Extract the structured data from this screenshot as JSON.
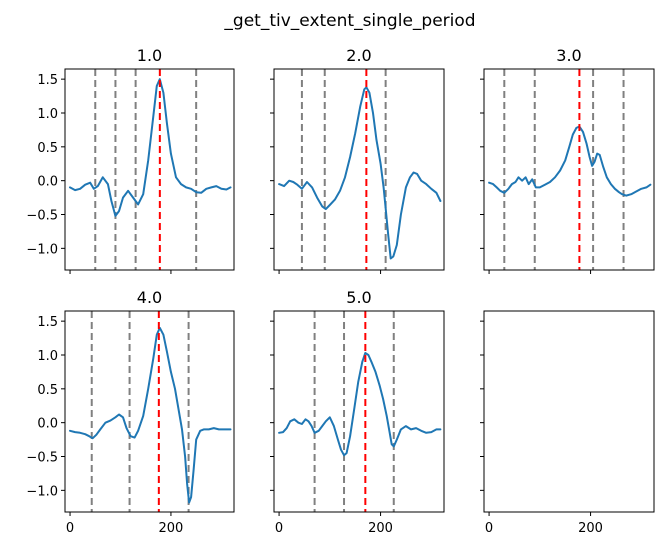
{
  "figure": {
    "suptitle": "_get_tiv_extent_single_period"
  },
  "colors": {
    "signal": "#1f77b4",
    "bound_line": "#808080",
    "peak_line": "#ff0000",
    "axes": "#000000",
    "background": "#ffffff"
  },
  "chart_data": [
    {
      "type": "line",
      "title": "1.0",
      "xlim": [
        -10,
        325
      ],
      "ylim": [
        -1.32,
        1.65
      ],
      "x_ticks": [
        0,
        200
      ],
      "y_ticks": [
        -1.0,
        -0.5,
        0.0,
        0.5,
        1.0,
        1.5
      ],
      "x_ticklabels": [],
      "y_ticklabels": [
        "−1.0",
        "−0.5",
        "0.0",
        "0.5",
        "1.0",
        "1.5"
      ],
      "series": [
        {
          "x": [
            0,
            10,
            20,
            30,
            40,
            47,
            55,
            65,
            75,
            82,
            90,
            97,
            105,
            115,
            125,
            135,
            145,
            155,
            165,
            172,
            178,
            185,
            192,
            200,
            210,
            220,
            230,
            240,
            250,
            260,
            270,
            280,
            290,
            300,
            310,
            318
          ],
          "y": [
            -0.1,
            -0.14,
            -0.12,
            -0.06,
            -0.03,
            -0.12,
            -0.08,
            0.05,
            -0.05,
            -0.3,
            -0.52,
            -0.45,
            -0.25,
            -0.15,
            -0.25,
            -0.35,
            -0.2,
            0.3,
            0.95,
            1.4,
            1.5,
            1.3,
            0.85,
            0.4,
            0.05,
            -0.05,
            -0.1,
            -0.12,
            -0.17,
            -0.18,
            -0.12,
            -0.1,
            -0.08,
            -0.12,
            -0.13,
            -0.1
          ]
        }
      ],
      "vlines_bounds": [
        50,
        90,
        130,
        250
      ],
      "vline_peak": 178
    },
    {
      "type": "line",
      "title": "2.0",
      "xlim": [
        -10,
        325
      ],
      "ylim": [
        -1.32,
        1.65
      ],
      "x_ticks": [
        0,
        200
      ],
      "y_ticks": [
        -1.0,
        -0.5,
        0.0,
        0.5,
        1.0,
        1.5
      ],
      "x_ticklabels": [],
      "y_ticklabels": [],
      "series": [
        {
          "x": [
            0,
            10,
            20,
            28,
            36,
            45,
            55,
            65,
            75,
            85,
            92,
            100,
            110,
            120,
            130,
            140,
            150,
            160,
            168,
            172,
            178,
            185,
            192,
            200,
            206,
            210,
            215,
            220,
            225,
            232,
            240,
            250,
            258,
            265,
            272,
            280,
            290,
            300,
            310,
            318
          ],
          "y": [
            -0.05,
            -0.08,
            0.0,
            -0.02,
            -0.06,
            -0.12,
            -0.02,
            -0.1,
            -0.25,
            -0.38,
            -0.42,
            -0.36,
            -0.28,
            -0.15,
            0.05,
            0.35,
            0.7,
            1.1,
            1.35,
            1.38,
            1.3,
            1.0,
            0.6,
            0.25,
            -0.1,
            -0.4,
            -0.8,
            -1.15,
            -1.12,
            -0.95,
            -0.5,
            -0.1,
            0.05,
            0.12,
            0.1,
            0.0,
            -0.05,
            -0.12,
            -0.18,
            -0.3
          ]
        }
      ],
      "vlines_bounds": [
        45,
        90,
        210
      ],
      "vline_peak": 172
    },
    {
      "type": "line",
      "title": "3.0",
      "xlim": [
        -10,
        325
      ],
      "ylim": [
        -1.32,
        1.65
      ],
      "x_ticks": [
        0,
        200
      ],
      "y_ticks": [
        -1.0,
        -0.5,
        0.0,
        0.5,
        1.0,
        1.5
      ],
      "x_ticklabels": [],
      "y_ticklabels": [],
      "series": [
        {
          "x": [
            0,
            8,
            15,
            22,
            30,
            38,
            45,
            52,
            58,
            65,
            72,
            78,
            85,
            92,
            100,
            110,
            120,
            130,
            140,
            150,
            158,
            165,
            172,
            178,
            185,
            192,
            198,
            203,
            208,
            213,
            218,
            225,
            232,
            240,
            248,
            256,
            262,
            270,
            280,
            290,
            300,
            310,
            318
          ],
          "y": [
            -0.03,
            -0.05,
            -0.1,
            -0.15,
            -0.18,
            -0.12,
            -0.05,
            -0.02,
            0.05,
            0.0,
            0.05,
            -0.05,
            0.02,
            -0.1,
            -0.1,
            -0.06,
            -0.02,
            0.05,
            0.15,
            0.3,
            0.5,
            0.68,
            0.78,
            0.8,
            0.72,
            0.55,
            0.35,
            0.22,
            0.28,
            0.4,
            0.38,
            0.2,
            0.05,
            -0.05,
            -0.12,
            -0.17,
            -0.2,
            -0.22,
            -0.2,
            -0.16,
            -0.12,
            -0.1,
            -0.06
          ]
        }
      ],
      "vlines_bounds": [
        30,
        90,
        205,
        265
      ],
      "vline_peak": 178
    },
    {
      "type": "line",
      "title": "4.0",
      "xlim": [
        -10,
        325
      ],
      "ylim": [
        -1.32,
        1.65
      ],
      "x_ticks": [
        0,
        200
      ],
      "y_ticks": [
        -1.0,
        -0.5,
        0.0,
        0.5,
        1.0,
        1.5
      ],
      "x_ticklabels": [
        "0",
        "200"
      ],
      "y_ticklabels": [
        "−1.0",
        "−0.5",
        "0.0",
        "0.5",
        "1.0",
        "1.5"
      ],
      "series": [
        {
          "x": [
            0,
            10,
            20,
            30,
            38,
            45,
            52,
            60,
            70,
            80,
            90,
            97,
            105,
            112,
            120,
            128,
            135,
            145,
            155,
            165,
            172,
            178,
            185,
            192,
            200,
            208,
            215,
            222,
            228,
            232,
            236,
            240,
            245,
            250,
            258,
            265,
            275,
            285,
            295,
            305,
            318
          ],
          "y": [
            -0.12,
            -0.14,
            -0.15,
            -0.17,
            -0.2,
            -0.23,
            -0.18,
            -0.1,
            0.0,
            0.03,
            0.08,
            0.12,
            0.08,
            -0.08,
            -0.2,
            -0.22,
            -0.12,
            0.1,
            0.5,
            0.95,
            1.3,
            1.4,
            1.3,
            1.05,
            0.75,
            0.5,
            0.2,
            -0.1,
            -0.5,
            -0.9,
            -1.18,
            -1.1,
            -0.7,
            -0.25,
            -0.12,
            -0.1,
            -0.1,
            -0.08,
            -0.1,
            -0.1,
            -0.1
          ]
        }
      ],
      "vlines_bounds": [
        43,
        118,
        235
      ],
      "vline_peak": 176
    },
    {
      "type": "line",
      "title": "5.0",
      "xlim": [
        -10,
        325
      ],
      "ylim": [
        -1.32,
        1.65
      ],
      "x_ticks": [
        0,
        200
      ],
      "y_ticks": [
        -1.0,
        -0.5,
        0.0,
        0.5,
        1.0,
        1.5
      ],
      "x_ticklabels": [
        "0",
        "200"
      ],
      "y_ticklabels": [],
      "series": [
        {
          "x": [
            0,
            8,
            15,
            22,
            30,
            38,
            45,
            52,
            58,
            64,
            70,
            78,
            85,
            92,
            100,
            108,
            116,
            122,
            128,
            133,
            140,
            148,
            156,
            164,
            170,
            176,
            182,
            190,
            198,
            205,
            212,
            218,
            222,
            226,
            232,
            240,
            250,
            260,
            270,
            280,
            290,
            300,
            310,
            318
          ],
          "y": [
            -0.15,
            -0.14,
            -0.08,
            0.02,
            0.05,
            0.0,
            -0.02,
            0.05,
            0.02,
            -0.05,
            -0.15,
            -0.12,
            -0.05,
            0.02,
            0.08,
            -0.05,
            -0.25,
            -0.4,
            -0.48,
            -0.45,
            -0.2,
            0.2,
            0.6,
            0.9,
            1.03,
            1.0,
            0.9,
            0.75,
            0.55,
            0.35,
            0.1,
            -0.15,
            -0.32,
            -0.35,
            -0.25,
            -0.1,
            -0.05,
            -0.1,
            -0.08,
            -0.12,
            -0.15,
            -0.14,
            -0.1,
            -0.1
          ]
        }
      ],
      "vlines_bounds": [
        70,
        128,
        226
      ],
      "vline_peak": 170
    },
    {
      "type": "line",
      "title": "",
      "xlim": [
        -10,
        325
      ],
      "ylim": [
        -1.32,
        1.65
      ],
      "x_ticks": [
        0,
        200
      ],
      "y_ticks": [
        -1.0,
        -0.5,
        0.0,
        0.5,
        1.0,
        1.5
      ],
      "x_ticklabels": [
        "0",
        "200"
      ],
      "y_ticklabels": [],
      "series": [],
      "vlines_bounds": [],
      "vline_peak": null
    }
  ]
}
